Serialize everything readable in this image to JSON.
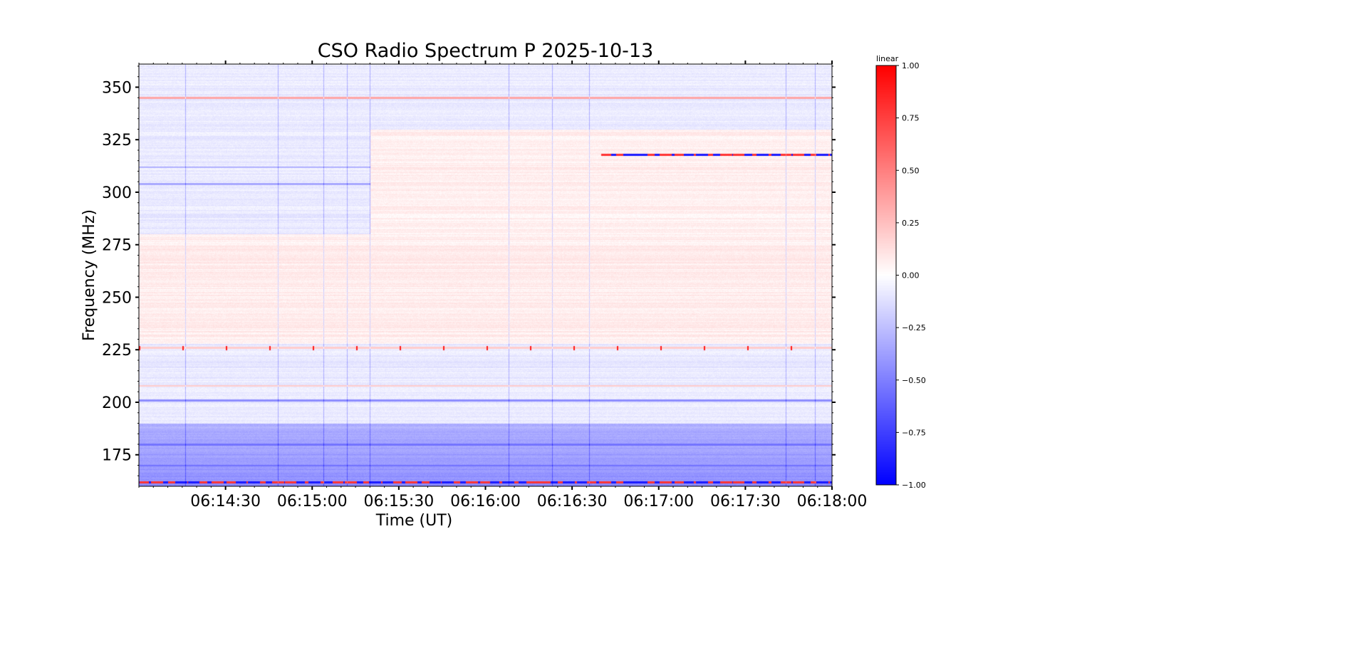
{
  "chart_data": {
    "type": "heatmap",
    "title": "CSO Radio Spectrum P 2025-10-13",
    "xlabel": "Time (UT)",
    "ylabel": "Frequency (MHz)",
    "xlim_seconds_after_061400": [
      0,
      240
    ],
    "ylim": [
      160,
      361
    ],
    "x_ticks": [
      {
        "label": "06:14:30",
        "t": 30
      },
      {
        "label": "06:15:00",
        "t": 60
      },
      {
        "label": "06:15:30",
        "t": 90
      },
      {
        "label": "06:16:00",
        "t": 120
      },
      {
        "label": "06:16:30",
        "t": 150
      },
      {
        "label": "06:17:00",
        "t": 180
      },
      {
        "label": "06:17:30",
        "t": 210
      },
      {
        "label": "06:18:00",
        "t": 240
      }
    ],
    "y_ticks": [
      {
        "label": "175",
        "v": 175
      },
      {
        "label": "200",
        "v": 200
      },
      {
        "label": "225",
        "v": 225
      },
      {
        "label": "250",
        "v": 250
      },
      {
        "label": "275",
        "v": 275
      },
      {
        "label": "300",
        "v": 300
      },
      {
        "label": "325",
        "v": 325
      },
      {
        "label": "350",
        "v": 350
      }
    ],
    "colorbar": {
      "label": "linear",
      "range": [
        -1,
        1
      ],
      "cmap": "bwr",
      "ticks": [
        {
          "label": "1.00",
          "v": 1
        },
        {
          "label": "0.75",
          "v": 0.75
        },
        {
          "label": "0.50",
          "v": 0.5
        },
        {
          "label": "0.25",
          "v": 0.25
        },
        {
          "label": "0.00",
          "v": 0
        },
        {
          "label": "−0.25",
          "v": -0.25
        },
        {
          "label": "−0.50",
          "v": -0.5
        },
        {
          "label": "−0.75",
          "v": -0.75
        },
        {
          "label": "−1.00",
          "v": -1
        }
      ]
    },
    "bands": [
      {
        "f0": 330,
        "f1": 361,
        "t0": 0,
        "t1": 240,
        "value": -0.08
      },
      {
        "f0": 280,
        "f1": 330,
        "t0": 0,
        "t1": 80,
        "value": -0.08
      },
      {
        "f0": 280,
        "f1": 330,
        "t0": 80,
        "t1": 240,
        "value": 0.06
      },
      {
        "f0": 228,
        "f1": 280,
        "t0": 0,
        "t1": 240,
        "value": 0.07
      },
      {
        "f0": 190,
        "f1": 228,
        "t0": 0,
        "t1": 240,
        "value": -0.08
      },
      {
        "f0": 160,
        "f1": 190,
        "t0": 0,
        "t1": 240,
        "value": -0.3
      }
    ],
    "lines": [
      {
        "f": 345,
        "t0": 0,
        "t1": 240,
        "value": 0.35
      },
      {
        "f": 312,
        "t0": 0,
        "t1": 80,
        "value": -0.3
      },
      {
        "f": 304,
        "t0": 0,
        "t1": 80,
        "value": -0.35
      },
      {
        "f": 226,
        "t0": 0,
        "t1": 240,
        "value": 0.2
      },
      {
        "f": 208,
        "t0": 0,
        "t1": 240,
        "value": 0.2
      },
      {
        "f": 201,
        "t0": 0,
        "t1": 240,
        "value": -0.45
      },
      {
        "f": 180,
        "t0": 0,
        "t1": 240,
        "value": -0.55
      },
      {
        "f": 170,
        "t0": 0,
        "t1": 240,
        "value": -0.55
      },
      {
        "f": 318,
        "t0": 160,
        "t1": 240,
        "value": "alternating"
      },
      {
        "f": 162,
        "t0": 0,
        "t1": 240,
        "value": "alternating"
      }
    ],
    "vertical_lines_t": [
      16,
      48,
      64,
      72,
      80,
      128,
      143,
      156,
      224,
      234
    ]
  }
}
